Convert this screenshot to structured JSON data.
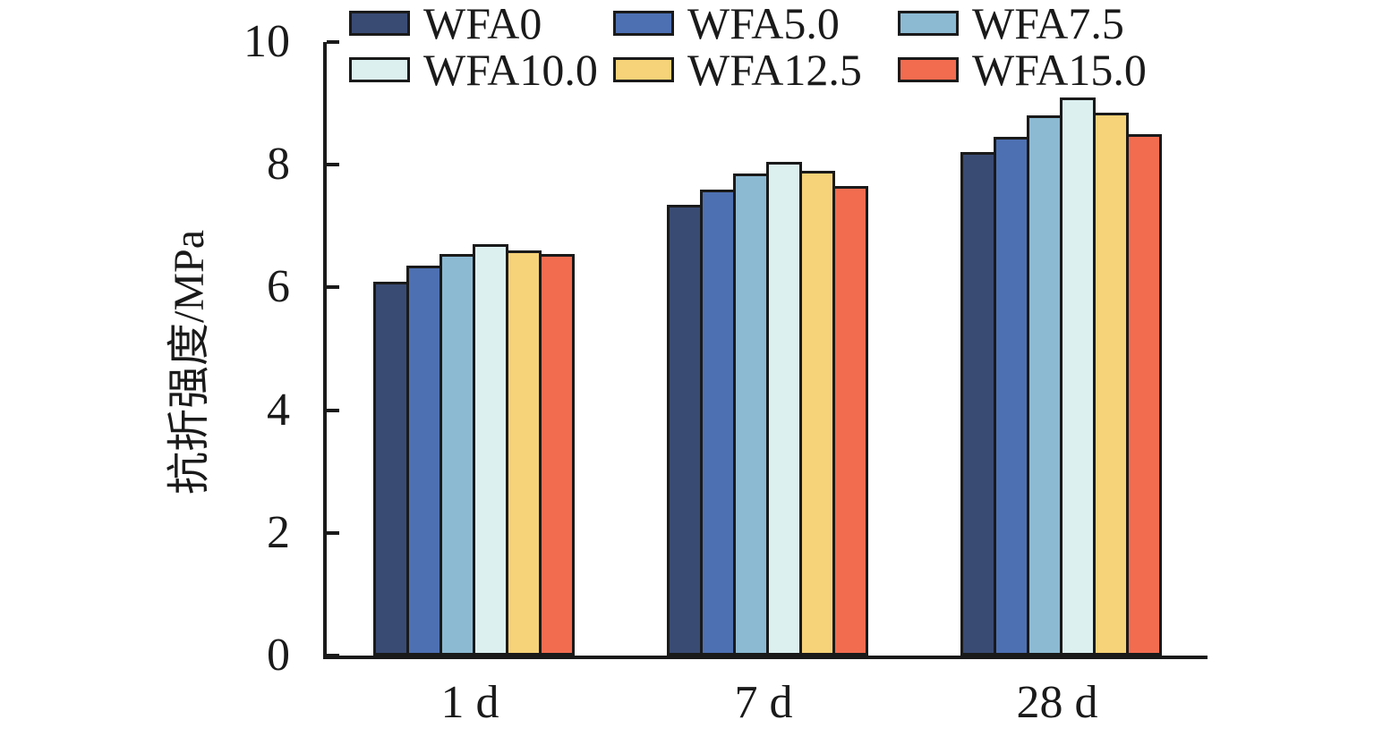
{
  "chart_data": {
    "type": "bar",
    "title": "",
    "categories": [
      "1 d",
      "7 d",
      "28 d"
    ],
    "series": [
      {
        "name": "WFA0",
        "color": "#394B73",
        "values": [
          6.1,
          7.35,
          8.2
        ]
      },
      {
        "name": "WFA5.0",
        "color": "#4D70B2",
        "values": [
          6.35,
          7.6,
          8.45
        ]
      },
      {
        "name": "WFA7.5",
        "color": "#8CBAD3",
        "values": [
          6.55,
          7.85,
          8.8
        ]
      },
      {
        "name": "WFA10.0",
        "color": "#DCF0F0",
        "values": [
          6.7,
          8.05,
          9.1
        ]
      },
      {
        "name": "WFA12.5",
        "color": "#F6D278",
        "values": [
          6.6,
          7.9,
          8.85
        ]
      },
      {
        "name": "WFA15.0",
        "color": "#F26C4F",
        "values": [
          6.55,
          7.65,
          8.5
        ]
      }
    ],
    "xlabel": "",
    "ylabel": "抗折强度/MPa",
    "ylim": [
      0,
      10
    ],
    "yticks": [
      0,
      2,
      4,
      6,
      8,
      10
    ],
    "grid": false,
    "legend_position": "top",
    "bar_outline_color": "#1a1a1a",
    "axis_color": "#1a1a1a"
  }
}
